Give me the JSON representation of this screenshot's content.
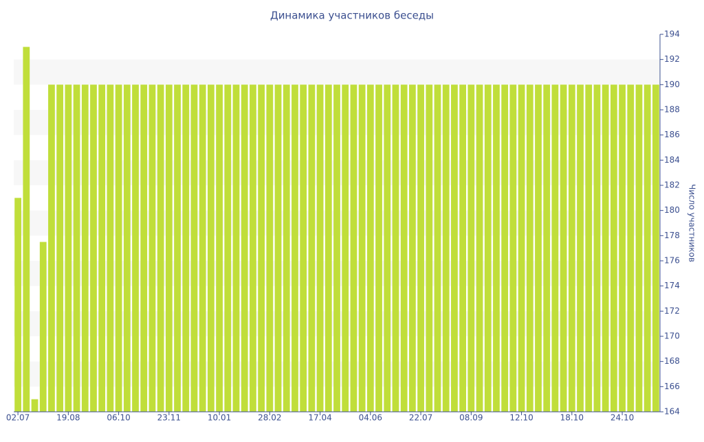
{
  "chart_data": {
    "type": "bar",
    "title": "Динамика участников беседы",
    "y_label": "Число участников",
    "categories": [
      "02.07",
      null,
      null,
      null,
      null,
      null,
      "19.08",
      null,
      null,
      null,
      null,
      null,
      "06.10",
      null,
      null,
      null,
      null,
      null,
      "23.11",
      null,
      null,
      null,
      null,
      null,
      "10.01",
      null,
      null,
      null,
      null,
      null,
      "28.02",
      null,
      null,
      null,
      null,
      null,
      "17.04",
      null,
      null,
      null,
      null,
      null,
      "04.06",
      null,
      null,
      null,
      null,
      null,
      "22.07",
      null,
      null,
      null,
      null,
      null,
      "08.09",
      null,
      null,
      null,
      null,
      null,
      "12.10",
      null,
      null,
      null,
      null,
      null,
      "18.10",
      null,
      null,
      null,
      null,
      null,
      "24.10",
      null,
      null,
      null,
      null
    ],
    "values": [
      181,
      193,
      165,
      177.5,
      190,
      190,
      190,
      190,
      190,
      190,
      190,
      190,
      190,
      190,
      190,
      190,
      190,
      190,
      190,
      190,
      190,
      190,
      190,
      190,
      190,
      190,
      190,
      190,
      190,
      190,
      190,
      190,
      190,
      190,
      190,
      190,
      190,
      190,
      190,
      190,
      190,
      190,
      190,
      190,
      190,
      190,
      190,
      190,
      190,
      190,
      190,
      190,
      190,
      190,
      190,
      190,
      190,
      190,
      190,
      190,
      190,
      190,
      190,
      190,
      190,
      190,
      190,
      190,
      190,
      190,
      190,
      190,
      190,
      190,
      190,
      190,
      190
    ],
    "color": "#c0de3a",
    "ylim": [
      164,
      194
    ],
    "yticks": [
      164,
      166,
      168,
      170,
      172,
      174,
      176,
      178,
      180,
      182,
      184,
      186,
      188,
      190,
      192,
      194
    ],
    "grid": true
  }
}
